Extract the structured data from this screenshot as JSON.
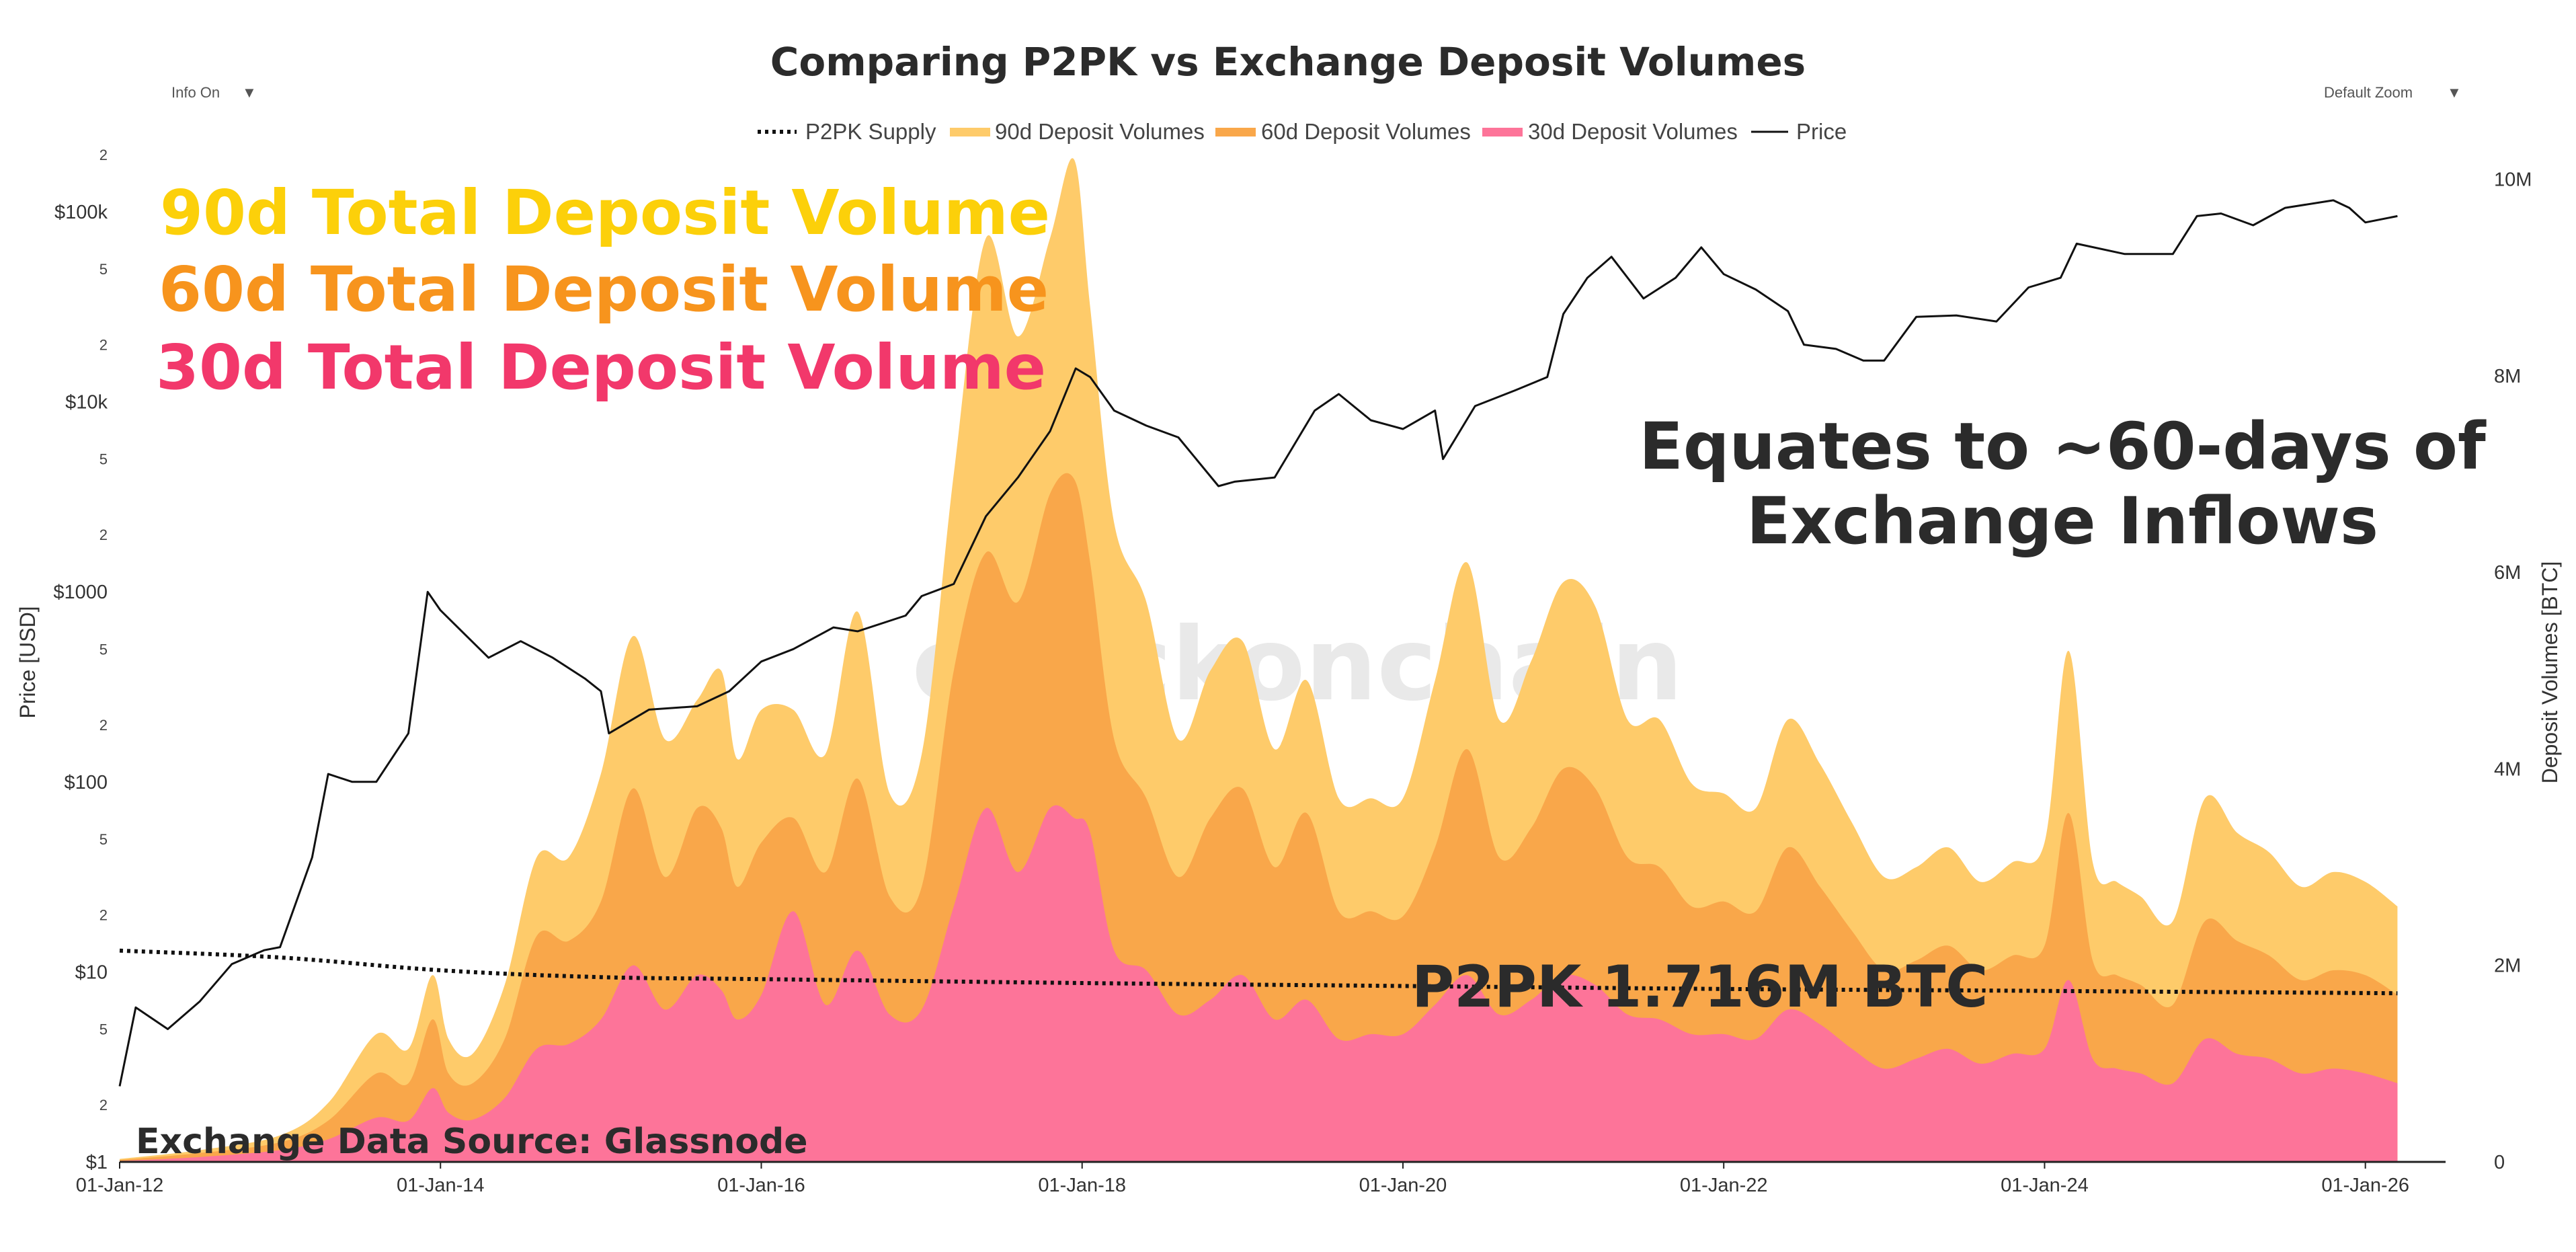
{
  "colors": {
    "v90": "#fecb6a",
    "v60": "#f9a74a",
    "v30": "#fd7499",
    "price": "#111111",
    "p2pk": "#111111",
    "anno90": "#fcd00a",
    "anno60": "#f7941d",
    "anno30": "#f2386b",
    "annoDark": "#2b2b2b"
  },
  "controls": {
    "info": "Info On",
    "info_caret": "▼",
    "zoom": "Default Zoom",
    "zoom_caret": "▼"
  },
  "watermark": "checkonchain",
  "annotations": {
    "a90": "90d Total Deposit Volume",
    "a60": "60d Total Deposit Volume",
    "a30": "30d Total Deposit Volume",
    "equates_line1": "Equates to ~60-days of",
    "equates_line2": "Exchange Inflows",
    "p2pk_label": "P2PK 1.716M BTC",
    "source": "Exchange Data Source: Glassnode"
  },
  "chart_data": {
    "type": "area",
    "title": "Comparing P2PK vs Exchange Deposit Volumes",
    "legend": [
      "P2PK Supply",
      "90d Deposit Volumes",
      "60d Deposit Volumes",
      "30d Deposit Volumes",
      "Price"
    ],
    "xlabel": "",
    "ylabel_left": "Price [USD]",
    "ylabel_right": "Deposit Volumes [BTC]",
    "x_domain": [
      2012.0,
      2026.5
    ],
    "x_ticks": [
      {
        "label": "01-Jan-12",
        "value": 2012
      },
      {
        "label": "01-Jan-14",
        "value": 2014
      },
      {
        "label": "01-Jan-16",
        "value": 2016
      },
      {
        "label": "01-Jan-18",
        "value": 2018
      },
      {
        "label": "01-Jan-20",
        "value": 2020
      },
      {
        "label": "01-Jan-22",
        "value": 2022
      },
      {
        "label": "01-Jan-24",
        "value": 2024
      },
      {
        "label": "01-Jan-26",
        "value": 2026
      }
    ],
    "y_left": {
      "scale": "log",
      "range": [
        1,
        200000
      ],
      "major_ticks": [
        {
          "label": "$1",
          "value": 1
        },
        {
          "label": "$10",
          "value": 10
        },
        {
          "label": "$100",
          "value": 100
        },
        {
          "label": "$1000",
          "value": 1000
        },
        {
          "label": "$10k",
          "value": 10000
        },
        {
          "label": "$100k",
          "value": 100000
        }
      ],
      "minor_ticks": [
        {
          "label": "2",
          "value": 2
        },
        {
          "label": "5",
          "value": 5
        },
        {
          "label": "2",
          "value": 20
        },
        {
          "label": "5",
          "value": 50
        },
        {
          "label": "2",
          "value": 200
        },
        {
          "label": "5",
          "value": 500
        },
        {
          "label": "2",
          "value": 2000
        },
        {
          "label": "5",
          "value": 5000
        },
        {
          "label": "2",
          "value": 20000
        },
        {
          "label": "5",
          "value": 50000
        },
        {
          "label": "2",
          "value": 200000
        }
      ]
    },
    "y_right": {
      "scale": "linear",
      "range": [
        0,
        10250000
      ],
      "ticks": [
        {
          "label": "0",
          "value": 0
        },
        {
          "label": "2M",
          "value": 2000000
        },
        {
          "label": "4M",
          "value": 4000000
        },
        {
          "label": "6M",
          "value": 6000000
        },
        {
          "label": "8M",
          "value": 8000000
        },
        {
          "label": "10M",
          "value": 10000000
        }
      ]
    },
    "series": [
      {
        "name": "90d Deposit Volumes",
        "axis": "right",
        "kind": "area",
        "x": [
          2012.0,
          2012.5,
          2013.0,
          2013.3,
          2013.6,
          2013.8,
          2013.95,
          2014.05,
          2014.2,
          2014.4,
          2014.6,
          2014.8,
          2015.0,
          2015.2,
          2015.4,
          2015.6,
          2015.75,
          2015.85,
          2016.0,
          2016.2,
          2016.4,
          2016.6,
          2016.8,
          2017.0,
          2017.2,
          2017.4,
          2017.6,
          2017.8,
          2017.95,
          2018.05,
          2018.2,
          2018.4,
          2018.6,
          2018.8,
          2019.0,
          2019.2,
          2019.4,
          2019.6,
          2019.8,
          2020.0,
          2020.2,
          2020.4,
          2020.6,
          2020.8,
          2021.0,
          2021.2,
          2021.4,
          2021.6,
          2021.8,
          2022.0,
          2022.2,
          2022.4,
          2022.6,
          2022.8,
          2023.0,
          2023.2,
          2023.4,
          2023.6,
          2023.8,
          2024.0,
          2024.15,
          2024.3,
          2024.45,
          2024.6,
          2024.8,
          2025.0,
          2025.2,
          2025.4,
          2025.6,
          2025.8,
          2026.0,
          2026.2
        ],
        "values": [
          30000,
          120000,
          270000,
          600000,
          1300000,
          1150000,
          1900000,
          1250000,
          1100000,
          1800000,
          3100000,
          3100000,
          3950000,
          5350000,
          4300000,
          4700000,
          5000000,
          4100000,
          4600000,
          4600000,
          4150000,
          5600000,
          3750000,
          4150000,
          7000000,
          9400000,
          8400000,
          9400000,
          10200000,
          8700000,
          6500000,
          5700000,
          4300000,
          5000000,
          5300000,
          4200000,
          4900000,
          3700000,
          3700000,
          3700000,
          4900000,
          6100000,
          4500000,
          5100000,
          5900000,
          5650000,
          4500000,
          4500000,
          3850000,
          3750000,
          3600000,
          4500000,
          4050000,
          3450000,
          2900000,
          3000000,
          3200000,
          2850000,
          3050000,
          3250000,
          5200000,
          3050000,
          2850000,
          2700000,
          2450000,
          3700000,
          3350000,
          3150000,
          2800000,
          2950000,
          2850000,
          2600000
        ]
      },
      {
        "name": "60d Deposit Volumes",
        "axis": "right",
        "kind": "area",
        "x": [
          2012.0,
          2012.5,
          2013.0,
          2013.3,
          2013.6,
          2013.8,
          2013.95,
          2014.05,
          2014.2,
          2014.4,
          2014.6,
          2014.8,
          2015.0,
          2015.2,
          2015.4,
          2015.6,
          2015.75,
          2015.85,
          2016.0,
          2016.2,
          2016.4,
          2016.6,
          2016.8,
          2017.0,
          2017.2,
          2017.4,
          2017.6,
          2017.8,
          2017.95,
          2018.05,
          2018.2,
          2018.4,
          2018.6,
          2018.8,
          2019.0,
          2019.2,
          2019.4,
          2019.6,
          2019.8,
          2020.0,
          2020.2,
          2020.4,
          2020.6,
          2020.8,
          2021.0,
          2021.2,
          2021.4,
          2021.6,
          2021.8,
          2022.0,
          2022.2,
          2022.4,
          2022.6,
          2022.8,
          2023.0,
          2023.2,
          2023.4,
          2023.6,
          2023.8,
          2024.0,
          2024.15,
          2024.3,
          2024.45,
          2024.6,
          2024.8,
          2025.0,
          2025.2,
          2025.4,
          2025.6,
          2025.8,
          2026.0,
          2026.2
        ],
        "values": [
          20000,
          90000,
          200000,
          420000,
          900000,
          800000,
          1450000,
          900000,
          800000,
          1250000,
          2300000,
          2250000,
          2650000,
          3800000,
          2900000,
          3600000,
          3400000,
          2800000,
          3250000,
          3500000,
          2950000,
          3900000,
          2700000,
          2800000,
          5000000,
          6200000,
          5700000,
          6800000,
          6950000,
          6100000,
          4300000,
          3700000,
          2900000,
          3500000,
          3800000,
          3000000,
          3550000,
          2550000,
          2550000,
          2500000,
          3200000,
          4200000,
          3100000,
          3400000,
          4000000,
          3800000,
          3100000,
          3000000,
          2600000,
          2650000,
          2550000,
          3200000,
          2800000,
          2350000,
          1950000,
          2050000,
          2200000,
          1950000,
          2100000,
          2200000,
          3550000,
          2050000,
          1900000,
          1800000,
          1600000,
          2450000,
          2250000,
          2100000,
          1850000,
          1950000,
          1900000,
          1700000
        ]
      },
      {
        "name": "30d Deposit Volumes",
        "axis": "right",
        "kind": "area",
        "x": [
          2012.0,
          2012.5,
          2013.0,
          2013.3,
          2013.6,
          2013.8,
          2013.95,
          2014.05,
          2014.2,
          2014.4,
          2014.6,
          2014.8,
          2015.0,
          2015.2,
          2015.4,
          2015.6,
          2015.75,
          2015.85,
          2016.0,
          2016.2,
          2016.4,
          2016.6,
          2016.8,
          2017.0,
          2017.2,
          2017.4,
          2017.6,
          2017.8,
          2017.95,
          2018.05,
          2018.2,
          2018.4,
          2018.6,
          2018.8,
          2019.0,
          2019.2,
          2019.4,
          2019.6,
          2019.8,
          2020.0,
          2020.2,
          2020.4,
          2020.6,
          2020.8,
          2021.0,
          2021.2,
          2021.4,
          2021.6,
          2021.8,
          2022.0,
          2022.2,
          2022.4,
          2022.6,
          2022.8,
          2023.0,
          2023.2,
          2023.4,
          2023.6,
          2023.8,
          2024.0,
          2024.15,
          2024.3,
          2024.45,
          2024.6,
          2024.8,
          2025.0,
          2025.2,
          2025.4,
          2025.6,
          2025.8,
          2026.0,
          2026.2
        ],
        "values": [
          10000,
          50000,
          120000,
          230000,
          450000,
          420000,
          750000,
          500000,
          430000,
          650000,
          1150000,
          1200000,
          1450000,
          2000000,
          1550000,
          1900000,
          1750000,
          1450000,
          1700000,
          2550000,
          1600000,
          2150000,
          1500000,
          1550000,
          2600000,
          3600000,
          2950000,
          3600000,
          3500000,
          3350000,
          2150000,
          1950000,
          1500000,
          1650000,
          1900000,
          1450000,
          1650000,
          1250000,
          1300000,
          1300000,
          1600000,
          1900000,
          1500000,
          1650000,
          1900000,
          1800000,
          1500000,
          1450000,
          1300000,
          1300000,
          1250000,
          1550000,
          1400000,
          1150000,
          950000,
          1050000,
          1150000,
          1000000,
          1100000,
          1150000,
          1850000,
          1050000,
          950000,
          900000,
          800000,
          1250000,
          1100000,
          1050000,
          900000,
          950000,
          900000,
          800000
        ]
      },
      {
        "name": "Price",
        "axis": "left",
        "kind": "line",
        "x": [
          2012.0,
          2012.1,
          2012.3,
          2012.5,
          2012.7,
          2012.9,
          2013.0,
          2013.2,
          2013.3,
          2013.45,
          2013.6,
          2013.8,
          2013.92,
          2014.0,
          2014.15,
          2014.3,
          2014.5,
          2014.7,
          2014.9,
          2015.0,
          2015.05,
          2015.3,
          2015.6,
          2015.8,
          2016.0,
          2016.2,
          2016.45,
          2016.6,
          2016.9,
          2017.0,
          2017.2,
          2017.4,
          2017.6,
          2017.8,
          2017.96,
          2018.05,
          2018.2,
          2018.4,
          2018.6,
          2018.85,
          2018.95,
          2019.2,
          2019.45,
          2019.6,
          2019.8,
          2020.0,
          2020.2,
          2020.25,
          2020.45,
          2020.7,
          2020.9,
          2021.0,
          2021.15,
          2021.3,
          2021.5,
          2021.7,
          2021.86,
          2022.0,
          2022.2,
          2022.4,
          2022.5,
          2022.7,
          2022.87,
          2023.0,
          2023.2,
          2023.45,
          2023.7,
          2023.9,
          2024.1,
          2024.2,
          2024.5,
          2024.8,
          2024.95,
          2025.1,
          2025.3,
          2025.5,
          2025.8,
          2025.9,
          2026.0,
          2026.2
        ],
        "values": [
          2.5,
          6.5,
          5,
          7,
          11,
          13,
          13.5,
          40,
          110,
          100,
          100,
          180,
          1000,
          800,
          600,
          450,
          550,
          450,
          350,
          300,
          180,
          240,
          250,
          300,
          430,
          500,
          650,
          620,
          750,
          950,
          1100,
          2500,
          4000,
          7000,
          15000,
          13500,
          9000,
          7500,
          6500,
          3600,
          3800,
          4000,
          9000,
          11000,
          8000,
          7200,
          9000,
          5000,
          9500,
          11500,
          13500,
          29000,
          45000,
          58000,
          35000,
          45000,
          65000,
          47000,
          39000,
          30000,
          20000,
          19000,
          16500,
          16500,
          28000,
          28500,
          26500,
          40000,
          45000,
          68000,
          60000,
          60000,
          95000,
          98000,
          85000,
          105000,
          115000,
          105000,
          88000,
          95000
        ]
      },
      {
        "name": "P2PK Supply",
        "axis": "right",
        "kind": "dotted-line",
        "x": [
          2012.0,
          2013.0,
          2014.0,
          2015.0,
          2016.0,
          2018.0,
          2020.0,
          2022.0,
          2024.0,
          2026.2
        ],
        "values": [
          2150000,
          2080000,
          1950000,
          1880000,
          1860000,
          1820000,
          1790000,
          1760000,
          1740000,
          1716000
        ]
      }
    ]
  }
}
